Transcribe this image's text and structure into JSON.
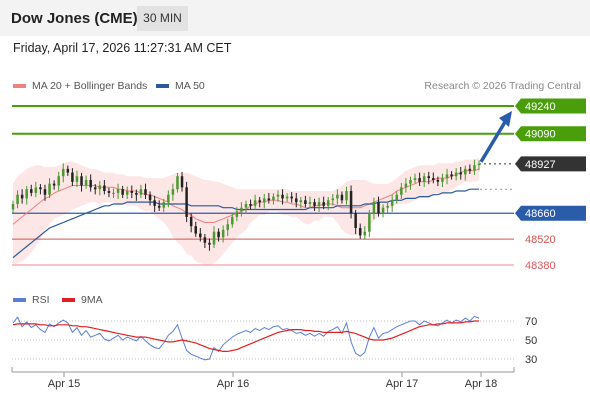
{
  "header": {
    "title": "Dow Jones (CME)",
    "timeframe": "30 MIN"
  },
  "datetime": "Friday, April 17, 2026 11:27:31 AM CET",
  "legend": {
    "bollinger": "MA 20 + Bollinger Bands",
    "ma50": "MA 50",
    "copyright": "Research © 2026 Trading Central"
  },
  "rsi_legend": {
    "rsi": "RSI",
    "ma9": "9MA"
  },
  "colors": {
    "green_level": "#4a9e0c",
    "blue_level": "#2a5caa",
    "red_level": "#d9534f",
    "pink_level": "#f0a0a8",
    "current": "#333333",
    "band_fill": "#fde2e2",
    "ma20": "#f08080",
    "ma50": "#2a5a9a",
    "rsi": "#5b7fd6",
    "rsi_ma": "#e02020",
    "candle_up": "#4a9a30",
    "candle_down": "#222222",
    "arrow": "#2a5caa"
  },
  "chart_data": [
    {
      "type": "candlestick",
      "title": "Dow Jones (CME)",
      "timeframe": "30 MIN",
      "x_ticks": [
        "Apr 15",
        "Apr 16",
        "Apr 17",
        "Apr 18"
      ],
      "levels": [
        {
          "label": "49240",
          "value": 49240,
          "kind": "target",
          "style": "green-badge"
        },
        {
          "label": "49090",
          "value": 49090,
          "kind": "target",
          "style": "green-badge"
        },
        {
          "label": "48927",
          "value": 48927,
          "kind": "current",
          "style": "dark-badge"
        },
        {
          "label": "48660",
          "value": 48660,
          "kind": "pivot",
          "style": "blue-badge"
        },
        {
          "label": "48520",
          "value": 48520,
          "kind": "support",
          "style": "red-text"
        },
        {
          "label": "48380",
          "value": 48380,
          "kind": "support",
          "style": "pink-text"
        }
      ],
      "close": [
        48710,
        48760,
        48740,
        48790,
        48770,
        48800,
        48790,
        48760,
        48820,
        48810,
        48860,
        48900,
        48880,
        48830,
        48860,
        48810,
        48840,
        48800,
        48790,
        48810,
        48780,
        48770,
        48770,
        48790,
        48760,
        48780,
        48770,
        48760,
        48790,
        48760,
        48730,
        48700,
        48690,
        48720,
        48760,
        48790,
        48860,
        48800,
        48640,
        48590,
        48550,
        48530,
        48500,
        48490,
        48560,
        48530,
        48570,
        48600,
        48640,
        48670,
        48690,
        48710,
        48700,
        48730,
        48720,
        48740,
        48730,
        48750,
        48760,
        48740,
        48750,
        48740,
        48720,
        48730,
        48710,
        48720,
        48700,
        48720,
        48700,
        48730,
        48740,
        48760,
        48730,
        48780,
        48660,
        48580,
        48540,
        48560,
        48660,
        48720,
        48660,
        48690,
        48700,
        48730,
        48760,
        48800,
        48820,
        48840,
        48850,
        48830,
        48860,
        48850,
        48840,
        48830,
        48850,
        48870,
        48860,
        48880,
        48870,
        48900,
        48890,
        48920,
        48927
      ],
      "ma20": [
        48600,
        48620,
        48640,
        48660,
        48680,
        48700,
        48720,
        48740,
        48750,
        48770,
        48780,
        48790,
        48800,
        48810,
        48810,
        48810,
        48810,
        48810,
        48810,
        48800,
        48800,
        48800,
        48800,
        48790,
        48790,
        48780,
        48780,
        48780,
        48770,
        48760,
        48760,
        48750,
        48740,
        48730,
        48720,
        48700,
        48690,
        48680,
        48660,
        48650,
        48630,
        48620,
        48610,
        48610,
        48610,
        48620,
        48630,
        48640,
        48650,
        48660,
        48670,
        48680,
        48700,
        48710,
        48720,
        48720,
        48730,
        48730,
        48730,
        48720,
        48720,
        48710,
        48710,
        48700,
        48690,
        48690,
        48700,
        48700,
        48710,
        48710,
        48710,
        48700,
        48690,
        48690,
        48690,
        48690,
        48690,
        48700,
        48710,
        48720,
        48730,
        48740,
        48750,
        48760,
        48780,
        48790,
        48800,
        48810,
        48820,
        48830,
        48830,
        48830,
        48840,
        48850,
        48850,
        48850,
        48860,
        48870,
        48880,
        48890,
        48890,
        48890,
        48900
      ],
      "ma50": [
        48420,
        48440,
        48460,
        48480,
        48500,
        48520,
        48540,
        48560,
        48580,
        48590,
        48600,
        48610,
        48620,
        48630,
        48640,
        48650,
        48660,
        48670,
        48680,
        48690,
        48700,
        48700,
        48710,
        48710,
        48710,
        48720,
        48720,
        48720,
        48720,
        48720,
        48720,
        48720,
        48710,
        48710,
        48710,
        48710,
        48710,
        48710,
        48710,
        48700,
        48700,
        48700,
        48700,
        48700,
        48700,
        48700,
        48690,
        48690,
        48690,
        48680,
        48680,
        48680,
        48680,
        48680,
        48680,
        48680,
        48680,
        48680,
        48680,
        48680,
        48680,
        48680,
        48680,
        48680,
        48680,
        48690,
        48690,
        48690,
        48690,
        48690,
        48690,
        48700,
        48700,
        48700,
        48700,
        48700,
        48700,
        48710,
        48710,
        48710,
        48720,
        48720,
        48720,
        48730,
        48730,
        48730,
        48740,
        48740,
        48740,
        48750,
        48750,
        48750,
        48760,
        48760,
        48770,
        48770,
        48770,
        48780,
        48780,
        48780,
        48790,
        48790,
        48790
      ],
      "boll_upper": [
        48820,
        48860,
        48880,
        48900,
        48910,
        48920,
        48920,
        48910,
        48910,
        48910,
        48920,
        48930,
        48940,
        48940,
        48930,
        48920,
        48910,
        48900,
        48900,
        48890,
        48880,
        48880,
        48880,
        48870,
        48870,
        48860,
        48860,
        48860,
        48860,
        48850,
        48850,
        48850,
        48850,
        48850,
        48860,
        48870,
        48880,
        48880,
        48880,
        48870,
        48860,
        48850,
        48840,
        48840,
        48830,
        48830,
        48820,
        48810,
        48800,
        48790,
        48790,
        48790,
        48790,
        48790,
        48790,
        48790,
        48790,
        48790,
        48790,
        48790,
        48790,
        48780,
        48780,
        48780,
        48780,
        48780,
        48780,
        48780,
        48780,
        48780,
        48780,
        48790,
        48810,
        48830,
        48840,
        48840,
        48840,
        48840,
        48830,
        48820,
        48820,
        48820,
        48820,
        48830,
        48850,
        48870,
        48890,
        48900,
        48910,
        48920,
        48920,
        48920,
        48920,
        48930,
        48930,
        48930,
        48930,
        48940,
        48940,
        48950,
        48950,
        48950,
        48960
      ],
      "boll_lower": [
        48380,
        48390,
        48400,
        48420,
        48450,
        48480,
        48520,
        48570,
        48600,
        48630,
        48640,
        48650,
        48660,
        48680,
        48690,
        48700,
        48710,
        48720,
        48720,
        48710,
        48720,
        48720,
        48720,
        48710,
        48710,
        48700,
        48700,
        48700,
        48680,
        48670,
        48670,
        48650,
        48630,
        48610,
        48580,
        48530,
        48500,
        48480,
        48440,
        48430,
        48400,
        48390,
        48380,
        48380,
        48390,
        48410,
        48440,
        48470,
        48500,
        48530,
        48550,
        48570,
        48610,
        48630,
        48650,
        48650,
        48670,
        48670,
        48670,
        48650,
        48650,
        48640,
        48640,
        48620,
        48600,
        48600,
        48620,
        48620,
        48640,
        48640,
        48640,
        48610,
        48570,
        48550,
        48540,
        48540,
        48540,
        48560,
        48590,
        48620,
        48640,
        48660,
        48680,
        48690,
        48710,
        48710,
        48710,
        48720,
        48730,
        48740,
        48740,
        48740,
        48760,
        48770,
        48770,
        48770,
        48790,
        48800,
        48820,
        48830,
        48830,
        48830,
        48840
      ]
    },
    {
      "type": "line",
      "title": "RSI",
      "series_names": [
        "RSI",
        "9MA"
      ],
      "y_ticks": [
        70,
        50,
        30
      ],
      "ylim": [
        20,
        80
      ],
      "rsi": [
        68,
        74,
        64,
        69,
        63,
        66,
        61,
        58,
        67,
        64,
        68,
        71,
        68,
        58,
        63,
        55,
        60,
        53,
        55,
        57,
        51,
        49,
        52,
        55,
        50,
        53,
        51,
        49,
        54,
        49,
        45,
        42,
        41,
        47,
        55,
        59,
        66,
        52,
        39,
        35,
        33,
        31,
        29,
        30,
        42,
        38,
        45,
        49,
        53,
        56,
        58,
        60,
        58,
        62,
        60,
        63,
        61,
        64,
        65,
        61,
        62,
        60,
        57,
        58,
        55,
        57,
        54,
        57,
        54,
        59,
        61,
        64,
        57,
        68,
        48,
        36,
        33,
        37,
        53,
        63,
        52,
        57,
        58,
        61,
        64,
        66,
        68,
        70,
        70,
        66,
        70,
        68,
        66,
        65,
        68,
        71,
        68,
        71,
        69,
        73,
        70,
        75,
        73
      ],
      "rsi_ma": [
        66,
        67,
        67,
        67,
        67,
        67,
        66,
        66,
        65,
        65,
        66,
        66,
        66,
        65,
        65,
        64,
        64,
        63,
        62,
        61,
        60,
        59,
        58,
        57,
        56,
        55,
        54,
        53,
        53,
        53,
        52,
        51,
        50,
        49,
        48,
        48,
        49,
        50,
        49,
        48,
        47,
        45,
        43,
        41,
        40,
        39,
        38,
        38,
        39,
        40,
        42,
        44,
        46,
        48,
        50,
        52,
        54,
        56,
        58,
        59,
        60,
        61,
        61,
        61,
        60,
        60,
        59,
        59,
        58,
        58,
        58,
        58,
        58,
        59,
        58,
        57,
        55,
        53,
        51,
        50,
        50,
        50,
        51,
        52,
        54,
        56,
        58,
        60,
        62,
        64,
        65,
        66,
        66,
        67,
        67,
        68,
        68,
        68,
        68,
        69,
        69,
        70,
        70
      ]
    }
  ]
}
